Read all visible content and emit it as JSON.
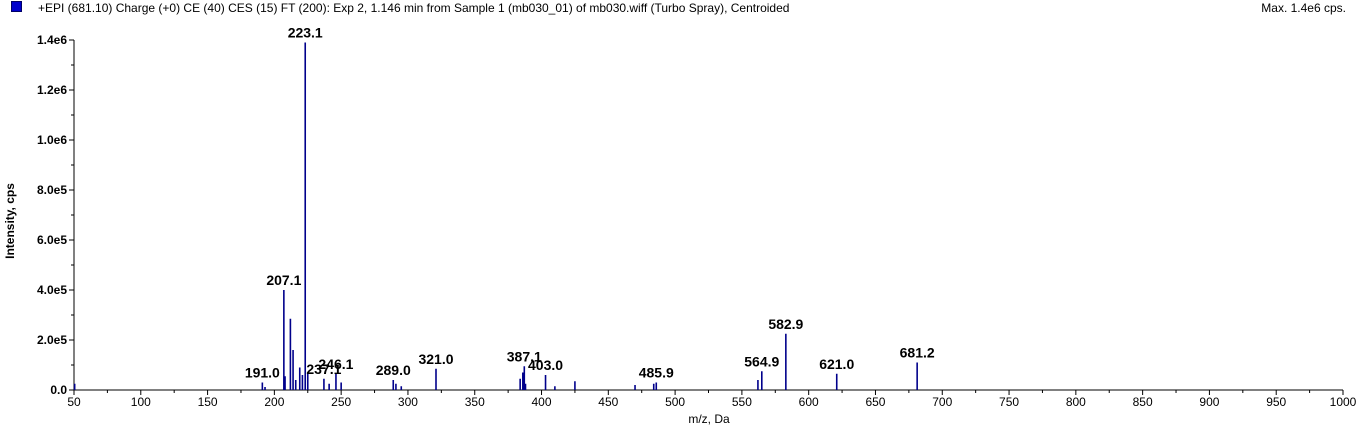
{
  "header": {
    "title": "+EPI (681.10) Charge (+0) CE (40) CES (15) FT (200): Exp 2, 1.146 min from Sample 1 (mb030_01) of mb030.wiff (Turbo Spray), Centroided",
    "max_label": "Max. 1.4e6 cps.",
    "series_color": "#0000cc"
  },
  "chart_data": {
    "type": "bar",
    "title": "+EPI (681.10) Charge (+0) CE (40) CES (15) FT (200): Exp 2, 1.146 min from Sample 1 (mb030_01) of mb030.wiff (Turbo Spray), Centroided",
    "xlabel": "m/z, Da",
    "ylabel": "Intensity, cps",
    "xlim": [
      50,
      1000
    ],
    "ylim": [
      0,
      1400000
    ],
    "x_ticks": [
      50,
      100,
      150,
      200,
      250,
      300,
      350,
      400,
      450,
      500,
      550,
      600,
      650,
      700,
      750,
      800,
      850,
      900,
      950,
      1000
    ],
    "x_tick_labels": [
      "50",
      "100",
      "150",
      "200",
      "250",
      "300",
      "350",
      "400",
      "450",
      "500",
      "550",
      "600",
      "650",
      "700",
      "750",
      "800",
      "850",
      "900",
      "950",
      "1000"
    ],
    "y_ticks": [
      0,
      200000,
      400000,
      600000,
      800000,
      1000000,
      1200000,
      1400000
    ],
    "y_tick_labels": [
      "0.0",
      "2.0e5",
      "4.0e5",
      "6.0e5",
      "8.0e5",
      "1.0e6",
      "1.2e6",
      "1.4e6"
    ],
    "grid": false,
    "series": [
      {
        "color": "#00008b",
        "peaks": [
          {
            "mz": 50.5,
            "intensity": 25000
          },
          {
            "mz": 191.0,
            "intensity": 30000
          },
          {
            "mz": 193.0,
            "intensity": 12000
          },
          {
            "mz": 207.1,
            "intensity": 400000
          },
          {
            "mz": 208.0,
            "intensity": 55000
          },
          {
            "mz": 212.0,
            "intensity": 285000
          },
          {
            "mz": 214.0,
            "intensity": 160000
          },
          {
            "mz": 216.0,
            "intensity": 40000
          },
          {
            "mz": 219.0,
            "intensity": 90000
          },
          {
            "mz": 221.0,
            "intensity": 60000
          },
          {
            "mz": 223.1,
            "intensity": 1390000
          },
          {
            "mz": 225.0,
            "intensity": 70000
          },
          {
            "mz": 237.1,
            "intensity": 45000
          },
          {
            "mz": 241.0,
            "intensity": 25000
          },
          {
            "mz": 246.1,
            "intensity": 65000
          },
          {
            "mz": 250.0,
            "intensity": 30000
          },
          {
            "mz": 289.0,
            "intensity": 40000
          },
          {
            "mz": 291.0,
            "intensity": 25000
          },
          {
            "mz": 295.0,
            "intensity": 15000
          },
          {
            "mz": 321.0,
            "intensity": 85000
          },
          {
            "mz": 384.0,
            "intensity": 45000
          },
          {
            "mz": 386.0,
            "intensity": 70000
          },
          {
            "mz": 387.1,
            "intensity": 95000
          },
          {
            "mz": 388.0,
            "intensity": 25000
          },
          {
            "mz": 403.0,
            "intensity": 60000
          },
          {
            "mz": 410.0,
            "intensity": 15000
          },
          {
            "mz": 425.0,
            "intensity": 35000
          },
          {
            "mz": 470.0,
            "intensity": 20000
          },
          {
            "mz": 484.0,
            "intensity": 25000
          },
          {
            "mz": 485.9,
            "intensity": 30000
          },
          {
            "mz": 562.0,
            "intensity": 40000
          },
          {
            "mz": 564.9,
            "intensity": 75000
          },
          {
            "mz": 582.9,
            "intensity": 225000
          },
          {
            "mz": 621.0,
            "intensity": 65000
          },
          {
            "mz": 681.2,
            "intensity": 110000
          }
        ]
      }
    ],
    "annotations": [
      {
        "text": "223.1",
        "mz": 223.1,
        "intensity": 1390000
      },
      {
        "text": "207.1",
        "mz": 207.1,
        "intensity": 400000
      },
      {
        "text": "191.0",
        "mz": 191.0,
        "intensity": 30000
      },
      {
        "text": "237.1",
        "mz": 237.1,
        "intensity": 45000
      },
      {
        "text": "246.1",
        "mz": 246.1,
        "intensity": 65000
      },
      {
        "text": "289.0",
        "mz": 289.0,
        "intensity": 40000
      },
      {
        "text": "321.0",
        "mz": 321.0,
        "intensity": 85000
      },
      {
        "text": "387.1",
        "mz": 387.1,
        "intensity": 95000
      },
      {
        "text": "403.0",
        "mz": 403.0,
        "intensity": 60000
      },
      {
        "text": "485.9",
        "mz": 485.9,
        "intensity": 30000
      },
      {
        "text": "564.9",
        "mz": 564.9,
        "intensity": 75000
      },
      {
        "text": "582.9",
        "mz": 582.9,
        "intensity": 225000
      },
      {
        "text": "621.0",
        "mz": 621.0,
        "intensity": 65000
      },
      {
        "text": "681.2",
        "mz": 681.2,
        "intensity": 110000
      }
    ]
  }
}
